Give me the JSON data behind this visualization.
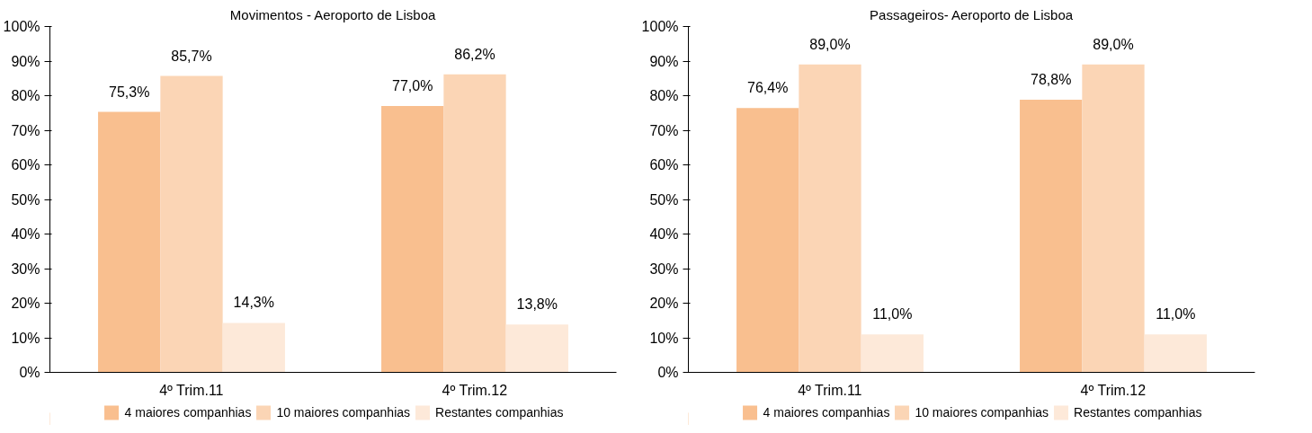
{
  "chart_data": [
    {
      "type": "bar",
      "title": "Movimentos - Aeroporto de Lisboa",
      "categories": [
        "4º Trim.11",
        "4º Trim.12"
      ],
      "series": [
        {
          "name": "4 maiores companhias",
          "color": "#f9bf8f",
          "values": [
            75.3,
            77.0
          ],
          "value_labels": [
            "75,3%",
            "77,0%"
          ]
        },
        {
          "name": "10 maiores companhias",
          "color": "#fbd5b5",
          "values": [
            85.7,
            86.2
          ],
          "value_labels": [
            "85,7%",
            "86,2%"
          ]
        },
        {
          "name": "Restantes companhias",
          "color": "#fde9d9",
          "values": [
            14.3,
            13.8
          ],
          "value_labels": [
            "14,3%",
            "13,8%"
          ]
        }
      ],
      "ylim": [
        0,
        100
      ],
      "yticks": [
        {
          "value": 0,
          "label": "0%"
        },
        {
          "value": 10,
          "label": "10%"
        },
        {
          "value": 20,
          "label": "20%"
        },
        {
          "value": 30,
          "label": "30%"
        },
        {
          "value": 40,
          "label": "40%"
        },
        {
          "value": 50,
          "label": "50%"
        },
        {
          "value": 60,
          "label": "60%"
        },
        {
          "value": 70,
          "label": "70%"
        },
        {
          "value": 80,
          "label": "80%"
        },
        {
          "value": 90,
          "label": "90%"
        },
        {
          "value": 100,
          "label": "100%"
        }
      ],
      "grid": false,
      "legend": "bottom"
    },
    {
      "type": "bar",
      "title": "Passageiros- Aeroporto de Lisboa",
      "categories": [
        "4º Trim.11",
        "4º Trim.12"
      ],
      "series": [
        {
          "name": "4 maiores companhias",
          "color": "#f9bf8f",
          "values": [
            76.4,
            78.8
          ],
          "value_labels": [
            "76,4%",
            "78,8%"
          ]
        },
        {
          "name": "10 maiores companhias",
          "color": "#fbd5b5",
          "values": [
            89.0,
            89.0
          ],
          "value_labels": [
            "89,0%",
            "89,0%"
          ]
        },
        {
          "name": "Restantes companhias",
          "color": "#fde9d9",
          "values": [
            11.0,
            11.0
          ],
          "value_labels": [
            "11,0%",
            "11,0%"
          ]
        }
      ],
      "ylim": [
        0,
        100
      ],
      "yticks": [
        {
          "value": 0,
          "label": "0%"
        },
        {
          "value": 10,
          "label": "10%"
        },
        {
          "value": 20,
          "label": "20%"
        },
        {
          "value": 30,
          "label": "30%"
        },
        {
          "value": 40,
          "label": "40%"
        },
        {
          "value": 50,
          "label": "50%"
        },
        {
          "value": 60,
          "label": "60%"
        },
        {
          "value": 70,
          "label": "70%"
        },
        {
          "value": 80,
          "label": "80%"
        },
        {
          "value": 90,
          "label": "90%"
        },
        {
          "value": 100,
          "label": "100%"
        }
      ],
      "grid": false,
      "legend": "bottom"
    }
  ]
}
